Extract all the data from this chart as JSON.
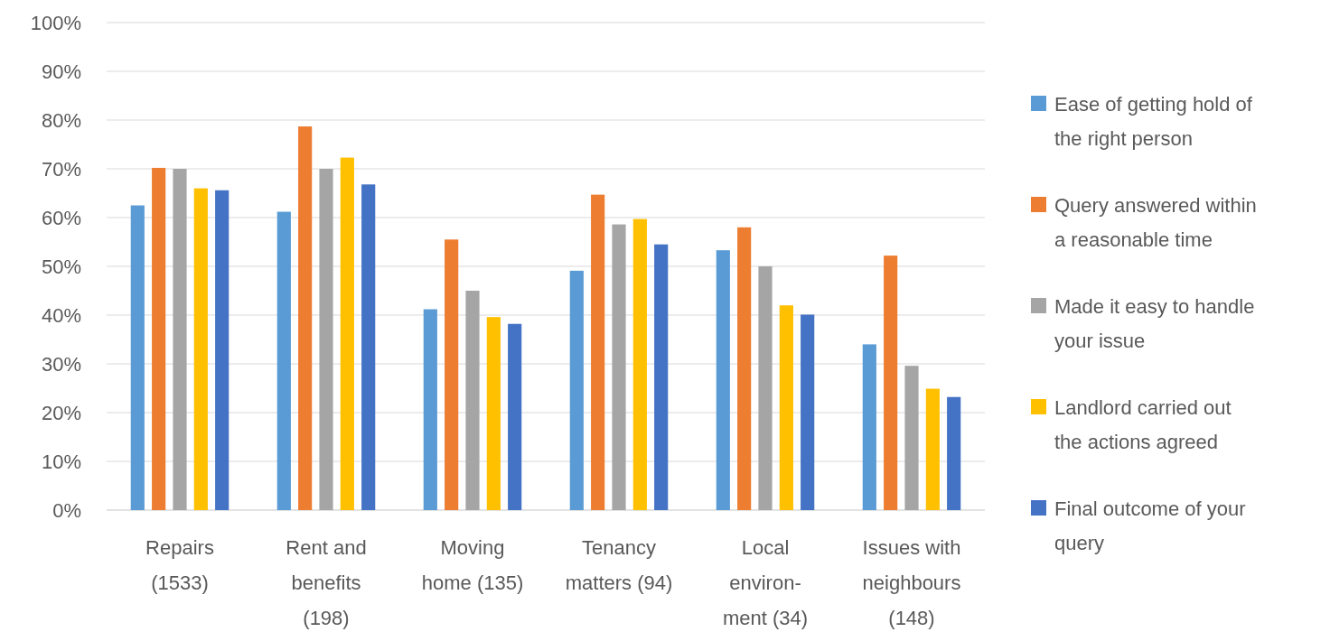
{
  "chart_data": {
    "type": "bar",
    "categories": [
      "Repairs\n(1533)",
      "Rent and\nbenefits\n(198)",
      "Moving\nhome (135)",
      "Tenancy\nmatters (94)",
      "Local\nenviron-\nment (34)",
      "Issues with\nneighbours\n(148)"
    ],
    "series": [
      {
        "name": "Ease of getting hold of\nthe right person",
        "color": "#5b9bd5",
        "values": [
          62.5,
          61.2,
          41.2,
          49.1,
          53.3,
          34
        ]
      },
      {
        "name": "Query answered within\na reasonable time",
        "color": "#ed7d31",
        "values": [
          70.2,
          78.7,
          55.5,
          64.7,
          58,
          52.2
        ]
      },
      {
        "name": "Made it easy to handle\nyour issue",
        "color": "#a5a5a5",
        "values": [
          70,
          70,
          45,
          58.6,
          50,
          29.6
        ]
      },
      {
        "name": "Landlord carried out\nthe actions agreed",
        "color": "#ffc000",
        "values": [
          66,
          72.3,
          39.6,
          59.7,
          42,
          24.9
        ]
      },
      {
        "name": "Final outcome of your\nquery",
        "color": "#4472c4",
        "values": [
          65.6,
          66.8,
          38.2,
          54.5,
          40.1,
          23.2
        ]
      }
    ],
    "ylim": [
      0,
      100
    ],
    "yticks": [
      {
        "value": 0,
        "label": "0%"
      },
      {
        "value": 10,
        "label": "10%"
      },
      {
        "value": 20,
        "label": "20%"
      },
      {
        "value": 30,
        "label": "30%"
      },
      {
        "value": 40,
        "label": "40%"
      },
      {
        "value": 50,
        "label": "50%"
      },
      {
        "value": 60,
        "label": "60%"
      },
      {
        "value": 70,
        "label": "70%"
      },
      {
        "value": 80,
        "label": "80%"
      },
      {
        "value": 90,
        "label": "90%"
      },
      {
        "value": 100,
        "label": "100%"
      }
    ],
    "grid": "y",
    "legend": "right"
  }
}
